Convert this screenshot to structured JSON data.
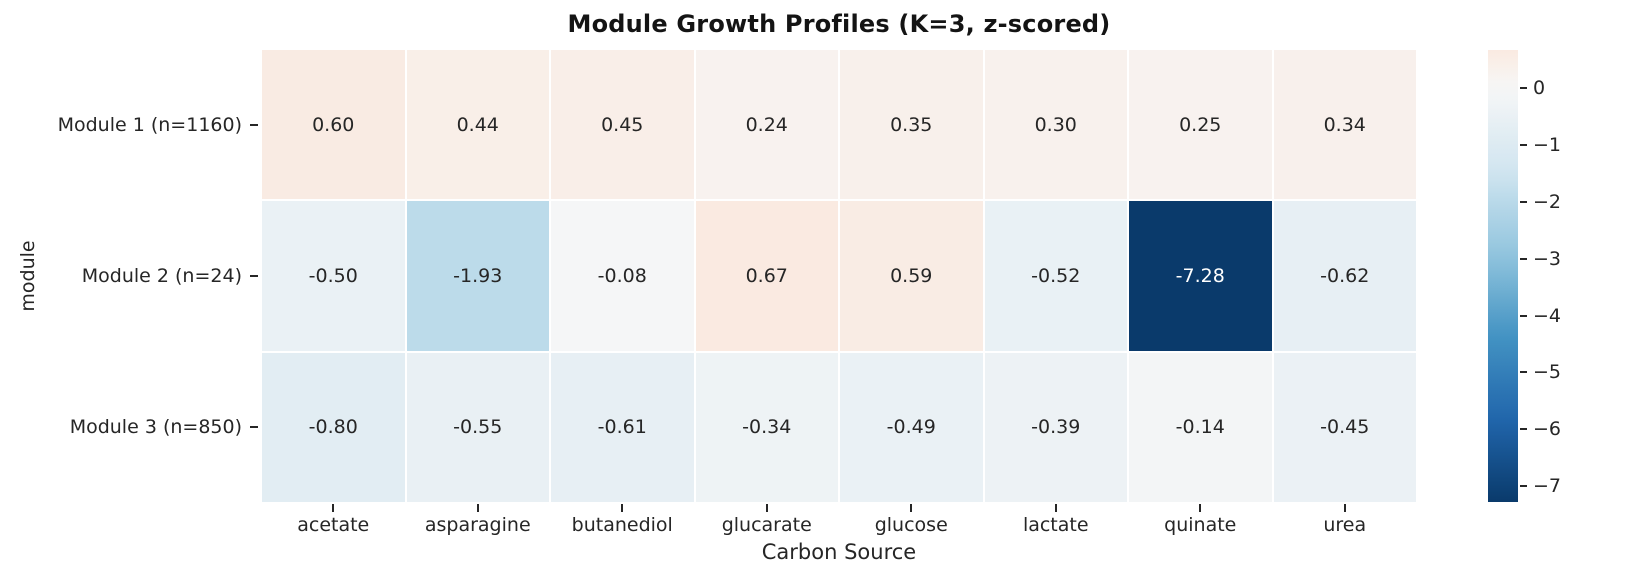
{
  "chart_data": {
    "type": "heatmap",
    "title": "Module Growth Profiles (K=3, z-scored)",
    "xlabel": "Carbon Source",
    "ylabel": "module",
    "rows": [
      "Module 1 (n=1160)",
      "Module 2 (n=24)",
      "Module 3 (n=850)"
    ],
    "columns": [
      "acetate",
      "asparagine",
      "butanediol",
      "glucarate",
      "glucose",
      "lactate",
      "quinate",
      "urea"
    ],
    "values": [
      [
        0.6,
        0.44,
        0.45,
        0.24,
        0.35,
        0.3,
        0.25,
        0.34
      ],
      [
        -0.5,
        -1.93,
        -0.08,
        0.67,
        0.59,
        -0.52,
        -7.28,
        -0.62
      ],
      [
        -0.8,
        -0.55,
        -0.61,
        -0.34,
        -0.49,
        -0.39,
        -0.14,
        -0.45
      ]
    ],
    "colorbar": {
      "vmin": -7.28,
      "vmax": 0.67,
      "center": 0,
      "tick_labels": [
        "0",
        "−1",
        "−2",
        "−3",
        "−4",
        "−5",
        "−6",
        "−7"
      ],
      "tick_values": [
        0,
        -1,
        -2,
        -3,
        -4,
        -5,
        -6,
        -7
      ],
      "position": "right"
    },
    "colormap": {
      "stops": [
        "#0a3a6b",
        "#2166ac",
        "#4393c3",
        "#92c5de",
        "#d1e5f0",
        "#f7f7f7",
        "#fddbc7",
        "#f4a582",
        "#d6604d",
        "#b2182b",
        "#67001f"
      ]
    },
    "colors": {
      "cell_text": "#262626",
      "cell_text_on_dark": "#ffffff",
      "title_text": "#141414",
      "min_cell": "#0a3a6b",
      "max_cell": "#fae8df",
      "background": "#ffffff"
    },
    "grid": "white cell separators",
    "legend_position": "none"
  }
}
